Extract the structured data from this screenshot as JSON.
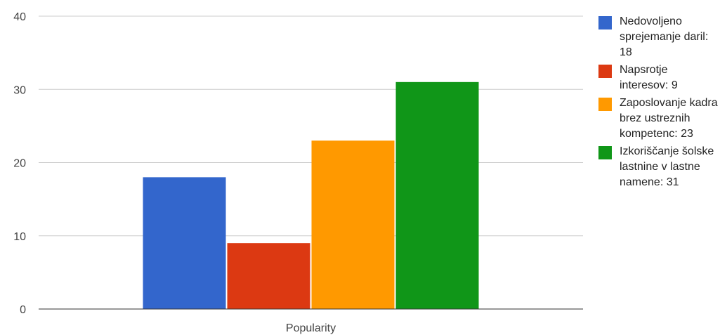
{
  "chart_data": {
    "type": "bar",
    "title": "",
    "xlabel": "",
    "ylabel": "",
    "categories": [
      "Popularity"
    ],
    "ylim": [
      0,
      40
    ],
    "yticks": [
      0,
      10,
      20,
      30,
      40
    ],
    "grid": true,
    "legend_position": "right",
    "series": [
      {
        "name": "Nedovoljeno sprejemanje daril",
        "legend_label": "Nedovoljeno sprejemanje daril: 18",
        "values": [
          18
        ],
        "color": "#3366cc"
      },
      {
        "name": "Napsrotje interesov",
        "legend_label": "Napsrotje interesov: 9",
        "values": [
          9
        ],
        "color": "#dc3912"
      },
      {
        "name": "Zaposlovanje kadra brez ustreznih kompetenc",
        "legend_label": "Zaposlovanje kadra brez ustreznih kompetenc: 23",
        "values": [
          23
        ],
        "color": "#ff9900"
      },
      {
        "name": "Izkoriščanje šolske lastnine v lastne namene",
        "legend_label": "Izkoriščanje šolske lastnine v lastne namene: 31",
        "values": [
          31
        ],
        "color": "#109618"
      }
    ]
  }
}
